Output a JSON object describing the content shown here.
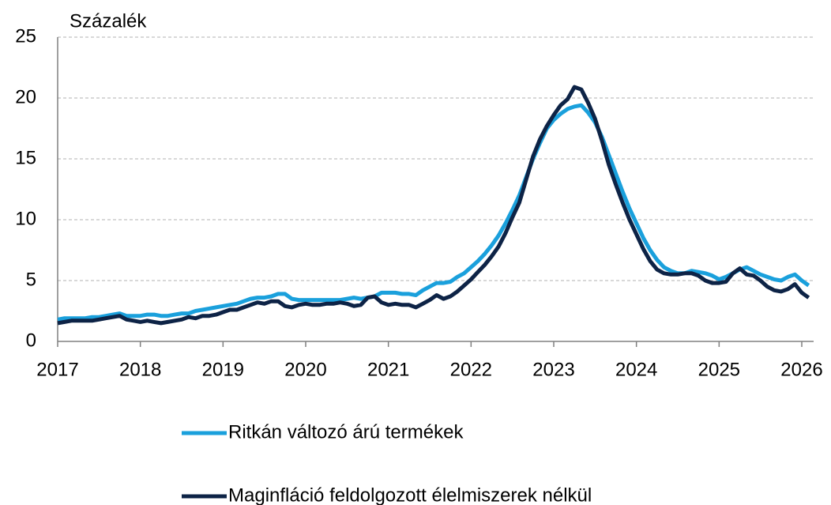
{
  "chart_data": {
    "type": "line",
    "ylabel": "Százalék",
    "x": [
      2017,
      2017.083,
      2017.167,
      2017.25,
      2017.333,
      2017.417,
      2017.5,
      2017.583,
      2017.667,
      2017.75,
      2017.833,
      2017.917,
      2018,
      2018.083,
      2018.167,
      2018.25,
      2018.333,
      2018.417,
      2018.5,
      2018.583,
      2018.667,
      2018.75,
      2018.833,
      2018.917,
      2019,
      2019.083,
      2019.167,
      2019.25,
      2019.333,
      2019.417,
      2019.5,
      2019.583,
      2019.667,
      2019.75,
      2019.833,
      2019.917,
      2020,
      2020.083,
      2020.167,
      2020.25,
      2020.333,
      2020.417,
      2020.5,
      2020.583,
      2020.667,
      2020.75,
      2020.833,
      2020.917,
      2021,
      2021.083,
      2021.167,
      2021.25,
      2021.333,
      2021.417,
      2021.5,
      2021.583,
      2021.667,
      2021.75,
      2021.833,
      2021.917,
      2022,
      2022.083,
      2022.167,
      2022.25,
      2022.333,
      2022.417,
      2022.5,
      2022.583,
      2022.667,
      2022.75,
      2022.833,
      2022.917,
      2023,
      2023.083,
      2023.167,
      2023.25,
      2023.333,
      2023.417,
      2023.5,
      2023.583,
      2023.667,
      2023.75,
      2023.833,
      2023.917,
      2024,
      2024.083,
      2024.167,
      2024.25,
      2024.333,
      2024.417,
      2024.5,
      2024.583,
      2024.667,
      2024.75,
      2024.833,
      2024.917,
      2025,
      2025.083,
      2025.167,
      2025.25,
      2025.333,
      2025.417,
      2025.5,
      2025.583,
      2025.667,
      2025.75,
      2025.833,
      2025.917,
      2026,
      2026.083
    ],
    "series": [
      {
        "name": "Ritkán változó árú termékek",
        "color": "#1aa0dc",
        "values": [
          1.8,
          1.9,
          1.9,
          1.9,
          1.9,
          2.0,
          2.0,
          2.1,
          2.2,
          2.3,
          2.1,
          2.1,
          2.1,
          2.2,
          2.2,
          2.1,
          2.1,
          2.2,
          2.3,
          2.3,
          2.5,
          2.6,
          2.7,
          2.8,
          2.9,
          3.0,
          3.1,
          3.3,
          3.5,
          3.6,
          3.6,
          3.7,
          3.9,
          3.9,
          3.5,
          3.4,
          3.4,
          3.4,
          3.4,
          3.4,
          3.4,
          3.4,
          3.5,
          3.6,
          3.5,
          3.6,
          3.7,
          4.0,
          4.0,
          4.0,
          3.9,
          3.9,
          3.8,
          4.2,
          4.5,
          4.8,
          4.8,
          4.9,
          5.3,
          5.6,
          6.1,
          6.6,
          7.2,
          7.9,
          8.7,
          9.7,
          10.8,
          12.0,
          13.5,
          15.0,
          16.3,
          17.5,
          18.2,
          18.7,
          19.1,
          19.3,
          19.4,
          18.8,
          18.0,
          16.8,
          15.3,
          13.8,
          12.3,
          10.9,
          9.7,
          8.5,
          7.5,
          6.7,
          6.1,
          5.8,
          5.6,
          5.6,
          5.8,
          5.7,
          5.6,
          5.4,
          5.1,
          5.3,
          5.6,
          5.9,
          6.1,
          5.8,
          5.5,
          5.3,
          5.1,
          5.0,
          5.3,
          5.5,
          5.0,
          4.6
        ]
      },
      {
        "name": "Maginfláció feldolgozott élelmiszerek nélkül",
        "color": "#0d2346",
        "values": [
          1.5,
          1.6,
          1.7,
          1.7,
          1.7,
          1.7,
          1.8,
          1.9,
          2.0,
          2.1,
          1.8,
          1.7,
          1.6,
          1.7,
          1.6,
          1.5,
          1.6,
          1.7,
          1.8,
          2.0,
          1.9,
          2.1,
          2.1,
          2.2,
          2.4,
          2.6,
          2.6,
          2.8,
          3.0,
          3.2,
          3.1,
          3.3,
          3.3,
          2.9,
          2.8,
          3.0,
          3.1,
          3.0,
          3.0,
          3.1,
          3.1,
          3.2,
          3.1,
          2.9,
          3.0,
          3.6,
          3.7,
          3.2,
          3.0,
          3.1,
          3.0,
          3.0,
          2.8,
          3.1,
          3.4,
          3.8,
          3.5,
          3.7,
          4.1,
          4.6,
          5.1,
          5.7,
          6.3,
          7.0,
          7.8,
          8.9,
          10.2,
          11.4,
          13.3,
          15.2,
          16.6,
          17.7,
          18.6,
          19.4,
          19.9,
          20.9,
          20.7,
          19.6,
          18.3,
          16.5,
          14.5,
          12.9,
          11.4,
          10.0,
          8.8,
          7.6,
          6.6,
          5.9,
          5.6,
          5.5,
          5.5,
          5.6,
          5.6,
          5.4,
          5.0,
          4.8,
          4.8,
          4.9,
          5.6,
          6.0,
          5.5,
          5.4,
          5.0,
          4.5,
          4.2,
          4.1,
          4.3,
          4.7,
          4.0,
          3.6
        ]
      }
    ],
    "xlim": [
      2017,
      2026.083
    ],
    "xticks": [
      2017,
      2018,
      2019,
      2020,
      2021,
      2022,
      2023,
      2024,
      2025,
      2026
    ],
    "ylim": [
      0,
      25
    ],
    "yticks": [
      0,
      5,
      10,
      15,
      20,
      25
    ],
    "grid": true,
    "legend": "bottom"
  }
}
